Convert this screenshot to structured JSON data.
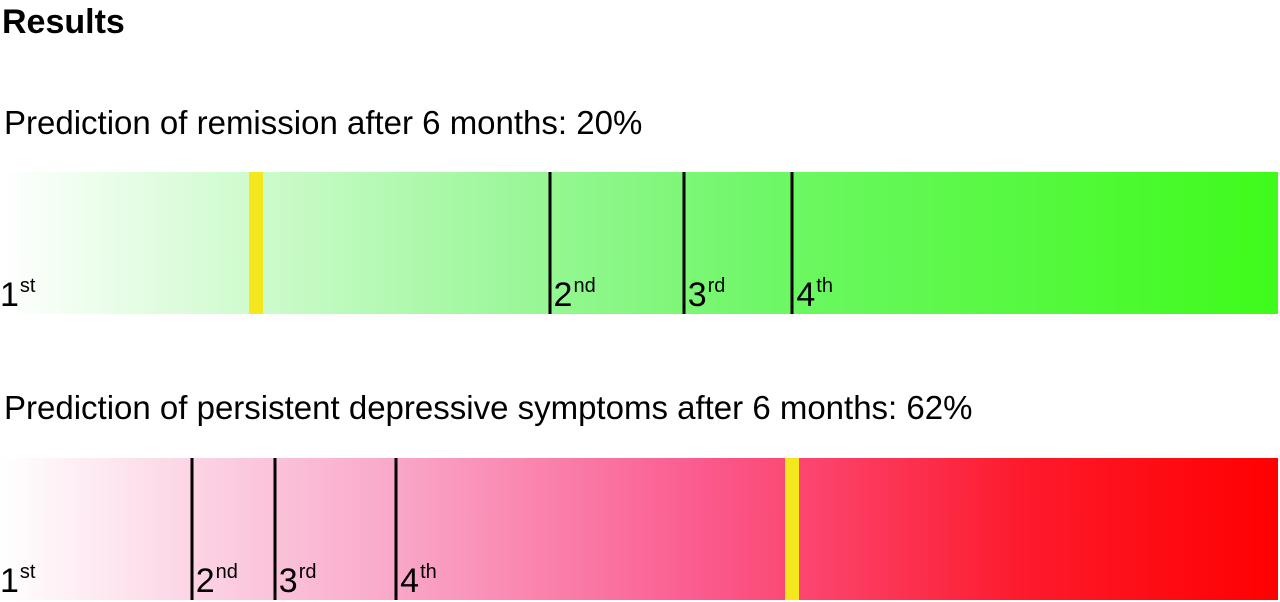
{
  "heading": "Results",
  "chart_data": [
    {
      "type": "bar",
      "title": "Prediction of remission after 6 months: 20%",
      "range": [
        0,
        100
      ],
      "value": 20,
      "value_marker_color": "#f5e71e",
      "gradient_colors": [
        "#ffffff",
        "#3efb1a"
      ],
      "quartile_boundaries": [
        43,
        53.5,
        62
      ],
      "quartiles": [
        {
          "num": "1",
          "suffix": "st",
          "start": 0
        },
        {
          "num": "2",
          "suffix": "nd",
          "start": 43
        },
        {
          "num": "3",
          "suffix": "rd",
          "start": 53.5
        },
        {
          "num": "4",
          "suffix": "th",
          "start": 62
        }
      ]
    },
    {
      "type": "bar",
      "title": "Prediction of persistent depressive symptoms after 6 months: 62%",
      "range": [
        0,
        100
      ],
      "value": 62,
      "value_marker_color": "#f5e71e",
      "gradient_colors": [
        "#ffffff",
        "#ff0000"
      ],
      "quartile_boundaries": [
        15,
        21.5,
        31
      ],
      "quartiles": [
        {
          "num": "1",
          "suffix": "st",
          "start": 0
        },
        {
          "num": "2",
          "suffix": "nd",
          "start": 15
        },
        {
          "num": "3",
          "suffix": "rd",
          "start": 21.5
        },
        {
          "num": "4",
          "suffix": "th",
          "start": 31
        }
      ]
    }
  ]
}
